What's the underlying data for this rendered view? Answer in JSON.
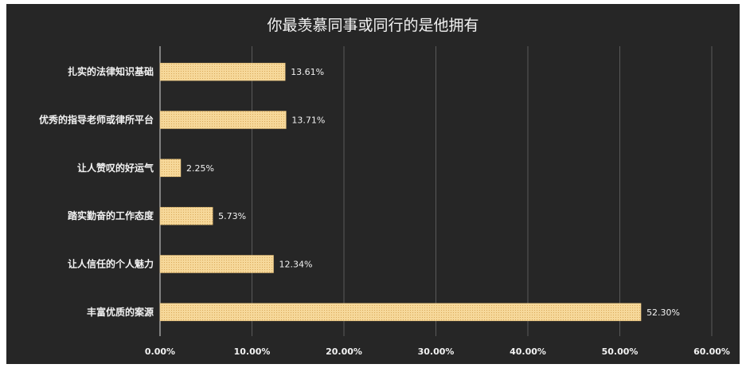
{
  "chart_data": {
    "type": "bar",
    "orientation": "horizontal",
    "title": "你最羡慕同事或同行的是他拥有",
    "categories": [
      "扎实的法律知识基础",
      "优秀的指导老师或律所平台",
      "让人赞叹的好运气",
      "踏实勤奋的工作态度",
      "让人信任的个人魅力",
      "丰富优质的案源"
    ],
    "values": [
      13.61,
      13.71,
      2.25,
      5.73,
      12.34,
      52.3
    ],
    "data_labels": [
      "13.61%",
      "13.71%",
      "2.25%",
      "5.73%",
      "12.34%",
      "52.30%"
    ],
    "x_ticks": [
      "0.00%",
      "10.00%",
      "20.00%",
      "30.00%",
      "40.00%",
      "50.00%",
      "60.00%"
    ],
    "xlim": [
      0,
      60
    ],
    "grid": true,
    "colors": {
      "background": "#262626",
      "bar": "#f3d28f",
      "text": "#f2f2f2",
      "grid": "#595959"
    }
  }
}
